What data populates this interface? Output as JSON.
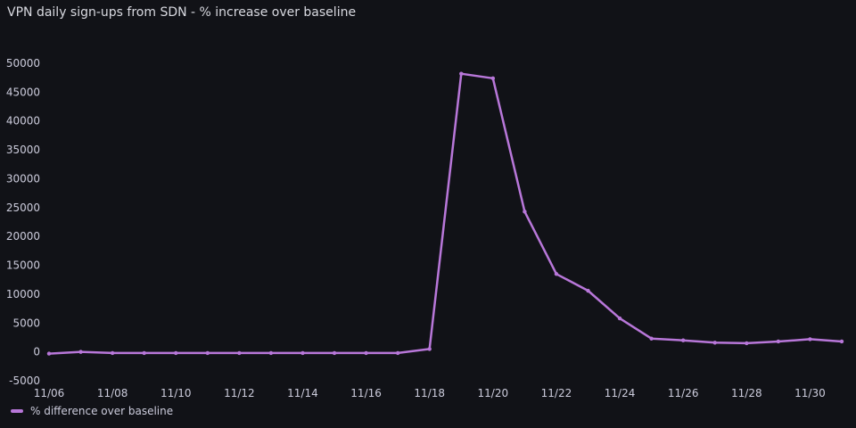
{
  "panel": {
    "title": "VPN daily sign-ups from SDN - % increase over baseline"
  },
  "colors": {
    "background": "#111217",
    "series": "#b877d9",
    "text": "#ccccdc"
  },
  "chart_data": {
    "type": "line",
    "title": "VPN daily sign-ups from SDN - % increase over baseline",
    "xlabel": "",
    "ylabel": "",
    "grid": false,
    "legend_placement": "bottom-left",
    "ylim": [
      -5000,
      50000
    ],
    "yticks": [
      -5000,
      0,
      5000,
      10000,
      15000,
      20000,
      25000,
      30000,
      35000,
      40000,
      45000,
      50000
    ],
    "xtick_labels": [
      "11/06",
      "11/08",
      "11/10",
      "11/12",
      "11/14",
      "11/16",
      "11/18",
      "11/20",
      "11/22",
      "11/24",
      "11/26",
      "11/28",
      "11/30"
    ],
    "x": [
      "11/06",
      "11/07",
      "11/08",
      "11/09",
      "11/10",
      "11/11",
      "11/12",
      "11/13",
      "11/14",
      "11/15",
      "11/16",
      "11/17",
      "11/18",
      "11/19",
      "11/20",
      "11/21",
      "11/22",
      "11/23",
      "11/24",
      "11/25",
      "11/26",
      "11/27",
      "11/28",
      "11/29",
      "11/30",
      "12/01"
    ],
    "series": [
      {
        "name": "% difference over baseline",
        "values": [
          -300,
          0,
          -200,
          -200,
          -200,
          -200,
          -200,
          -200,
          -200,
          -200,
          -200,
          -200,
          500,
          48200,
          47400,
          24300,
          13500,
          10600,
          5800,
          2300,
          2000,
          1600,
          1500,
          1800,
          2200,
          1800
        ]
      }
    ]
  }
}
